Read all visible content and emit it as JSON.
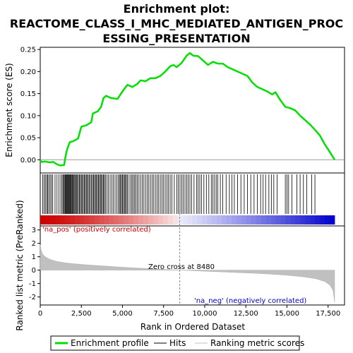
{
  "title_lines": [
    "Enrichment plot:",
    "REACTOME_CLASS_I_MHC_MEDIATED_ANTIGEN_PROC",
    "ESSING_PRESENTATION"
  ],
  "chart_data": {
    "type": "line",
    "x_axis": {
      "label": "Rank in Ordered Dataset",
      "range": [
        0,
        18500
      ],
      "ticks": [
        0,
        2500,
        5000,
        7500,
        10000,
        12500,
        15000,
        17500
      ],
      "tick_labels": [
        "0",
        "2,500",
        "5,000",
        "7,500",
        "10,000",
        "12,500",
        "15,000",
        "17,500"
      ]
    },
    "es_panel": {
      "ylabel": "Enrichment score (ES)",
      "ylim": [
        -0.03,
        0.255
      ],
      "ticks": [
        0.0,
        0.05,
        0.1,
        0.15,
        0.2,
        0.25
      ],
      "tick_labels": [
        "0.00",
        "0.05",
        "0.10",
        "0.15",
        "0.20",
        "0.25"
      ],
      "series_name": "Enrichment profile",
      "color": "#00e000",
      "points": [
        [
          0,
          -0.002
        ],
        [
          100,
          -0.005
        ],
        [
          300,
          -0.004
        ],
        [
          600,
          -0.006
        ],
        [
          800,
          -0.005
        ],
        [
          1000,
          -0.01
        ],
        [
          1200,
          -0.013
        ],
        [
          1450,
          -0.012
        ],
        [
          1550,
          0.01
        ],
        [
          1650,
          0.025
        ],
        [
          1800,
          0.04
        ],
        [
          2000,
          0.042
        ],
        [
          2300,
          0.048
        ],
        [
          2500,
          0.075
        ],
        [
          2800,
          0.078
        ],
        [
          3100,
          0.085
        ],
        [
          3200,
          0.105
        ],
        [
          3500,
          0.11
        ],
        [
          3700,
          0.12
        ],
        [
          3850,
          0.14
        ],
        [
          4000,
          0.145
        ],
        [
          4300,
          0.14
        ],
        [
          4700,
          0.138
        ],
        [
          5000,
          0.155
        ],
        [
          5300,
          0.17
        ],
        [
          5600,
          0.165
        ],
        [
          5900,
          0.172
        ],
        [
          6100,
          0.18
        ],
        [
          6400,
          0.178
        ],
        [
          6700,
          0.185
        ],
        [
          7000,
          0.185
        ],
        [
          7300,
          0.19
        ],
        [
          7600,
          0.2
        ],
        [
          7900,
          0.212
        ],
        [
          8100,
          0.215
        ],
        [
          8300,
          0.21
        ],
        [
          8600,
          0.22
        ],
        [
          8900,
          0.236
        ],
        [
          9100,
          0.242
        ],
        [
          9300,
          0.236
        ],
        [
          9600,
          0.235
        ],
        [
          9900,
          0.225
        ],
        [
          10200,
          0.215
        ],
        [
          10500,
          0.222
        ],
        [
          10800,
          0.218
        ],
        [
          11100,
          0.218
        ],
        [
          11400,
          0.21
        ],
        [
          11700,
          0.205
        ],
        [
          12000,
          0.2
        ],
        [
          12300,
          0.195
        ],
        [
          12600,
          0.19
        ],
        [
          12900,
          0.175
        ],
        [
          13200,
          0.165
        ],
        [
          13500,
          0.16
        ],
        [
          13800,
          0.155
        ],
        [
          14100,
          0.148
        ],
        [
          14300,
          0.153
        ],
        [
          14600,
          0.135
        ],
        [
          14900,
          0.12
        ],
        [
          15200,
          0.117
        ],
        [
          15500,
          0.112
        ],
        [
          15800,
          0.1
        ],
        [
          16100,
          0.09
        ],
        [
          16400,
          0.08
        ],
        [
          16700,
          0.068
        ],
        [
          17000,
          0.055
        ],
        [
          17300,
          0.035
        ],
        [
          17600,
          0.018
        ],
        [
          17900,
          0.0
        ]
      ]
    },
    "hits": {
      "label": "Hits",
      "color": "#000000",
      "positions": [
        150,
        230,
        310,
        390,
        450,
        520,
        600,
        680,
        760,
        900,
        1020,
        1140,
        1250,
        1330,
        1400,
        1450,
        1500,
        1540,
        1580,
        1620,
        1660,
        1700,
        1740,
        1780,
        1820,
        1860,
        1900,
        1950,
        2000,
        2050,
        2100,
        2150,
        2200,
        2260,
        2320,
        2380,
        2440,
        2500,
        2560,
        2620,
        2680,
        2740,
        2800,
        2860,
        2920,
        2980,
        3050,
        3120,
        3180,
        3240,
        3300,
        3360,
        3420,
        3480,
        3540,
        3600,
        3660,
        3720,
        3780,
        3840,
        3900,
        3960,
        4050,
        4150,
        4250,
        4350,
        4450,
        4550,
        4650,
        4750,
        4820,
        4880,
        4940,
        5000,
        5060,
        5120,
        5180,
        5240,
        5300,
        5400,
        5500,
        5580,
        5660,
        5740,
        5820,
        5900,
        6000,
        6100,
        6200,
        6300,
        6400,
        6500,
        6600,
        6700,
        6800,
        6900,
        7000,
        7100,
        7200,
        7300,
        7400,
        7500,
        7600,
        7700,
        7800,
        7900,
        8000,
        8150,
        8300,
        8400,
        8500,
        8600,
        8700,
        8800,
        8900,
        9000,
        9100,
        9200,
        9350,
        9500,
        9600,
        9700,
        9800,
        9950,
        10100,
        10250,
        10400,
        10500,
        10600,
        10700,
        10800,
        10950,
        11100,
        11300,
        11500,
        11650,
        11800,
        12000,
        12200,
        12400,
        12600,
        12800,
        13000,
        13200,
        13400,
        13550,
        13700,
        13900,
        14050,
        14200,
        14400,
        14900,
        15000,
        15100,
        15300,
        15600,
        15800,
        16000,
        16200,
        16500,
        16700
      ]
    },
    "ranked_metric": {
      "ylabel": "Ranked list metric (PreRanked)",
      "label": "Ranking metric scores",
      "color": "#c0c0c0",
      "ylim": [
        -2.6,
        3.3
      ],
      "ticks": [
        -2,
        -1,
        0,
        1,
        2,
        3
      ],
      "tick_labels": [
        "-2",
        "-1",
        "0",
        "1",
        "2",
        "3"
      ],
      "points": [
        [
          0,
          1.9
        ],
        [
          50,
          1.5
        ],
        [
          150,
          1.2
        ],
        [
          300,
          1.0
        ],
        [
          600,
          0.8
        ],
        [
          1000,
          0.65
        ],
        [
          1500,
          0.55
        ],
        [
          2000,
          0.48
        ],
        [
          3000,
          0.38
        ],
        [
          4000,
          0.3
        ],
        [
          5000,
          0.22
        ],
        [
          6000,
          0.15
        ],
        [
          7000,
          0.09
        ],
        [
          8000,
          0.03
        ],
        [
          8480,
          0.0
        ],
        [
          9000,
          -0.03
        ],
        [
          10000,
          -0.08
        ],
        [
          11000,
          -0.13
        ],
        [
          12000,
          -0.18
        ],
        [
          13000,
          -0.23
        ],
        [
          14000,
          -0.3
        ],
        [
          15000,
          -0.38
        ],
        [
          16000,
          -0.5
        ],
        [
          16800,
          -0.65
        ],
        [
          17300,
          -0.85
        ],
        [
          17600,
          -1.1
        ],
        [
          17800,
          -1.5
        ],
        [
          17900,
          -2.4
        ]
      ],
      "zero_cross_label": "Zero cross at 8480",
      "zero_cross_x": 8480,
      "pos_label": "'na_pos' (positively correlated)",
      "neg_label": "'na_neg' (negatively correlated)",
      "pos_color": "#cc0000",
      "neg_color": "#0000cc"
    },
    "legend": {
      "items": [
        {
          "label": "Enrichment profile",
          "color": "#00e000",
          "style": "thick"
        },
        {
          "label": "Hits",
          "color": "#000000",
          "style": "thin"
        },
        {
          "label": "Ranking metric scores",
          "color": "#c0c0c0",
          "style": "thin"
        }
      ]
    }
  }
}
